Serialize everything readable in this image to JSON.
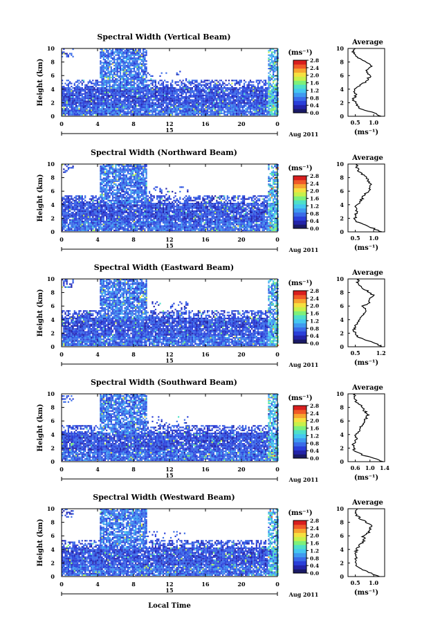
{
  "figure": {
    "xlabel": "Local Time",
    "date_label": "Aug 2011",
    "day_label": "15",
    "colorbar_unit": "(ms⁻¹)",
    "colorbar_ticks": [
      "0.0",
      "0.4",
      "0.8",
      "1.2",
      "1.6",
      "2.0",
      "2.4",
      "2.8"
    ],
    "colormap": [
      "#1a1a66",
      "#2323a8",
      "#2a3fd9",
      "#3a6be8",
      "#3f9af0",
      "#45c7f0",
      "#4fe0c8",
      "#7ef07a",
      "#c8f04a",
      "#f5e040",
      "#f7a530",
      "#f05a28",
      "#d81e1e"
    ]
  },
  "chart_data": [
    {
      "type": "heatmap",
      "title": "Spectral Width (Vertical Beam)",
      "ylabel": "Height (km)",
      "xlim": [
        0,
        24
      ],
      "ylim": [
        0,
        10
      ],
      "x_ticks": [
        "0",
        "4",
        "8",
        "12",
        "16",
        "20",
        "0"
      ],
      "y_ticks": [
        "0",
        "2",
        "4",
        "6",
        "8",
        "10"
      ],
      "colorbar_range": [
        0.0,
        2.8
      ],
      "profile": {
        "title": "Average",
        "xlabel": "(ms⁻¹)",
        "x_ticks": [
          "0.5",
          "1.0"
        ],
        "xlim": [
          0.3,
          1.3
        ],
        "y_ticks": [
          "0",
          "2",
          "4",
          "6",
          "8",
          "10"
        ],
        "heights": [
          0,
          0.5,
          1,
          1.5,
          2,
          2.5,
          3,
          3.5,
          4,
          4.5,
          5,
          5.5,
          6,
          6.5,
          7,
          7.5,
          8,
          8.5,
          9,
          9.5,
          10
        ],
        "values": [
          1.2,
          1.0,
          0.7,
          0.55,
          0.5,
          0.45,
          0.5,
          0.5,
          0.45,
          0.6,
          0.75,
          0.85,
          0.9,
          0.8,
          0.85,
          0.95,
          0.8,
          0.6,
          0.5,
          0.45,
          0.5
        ]
      }
    },
    {
      "type": "heatmap",
      "title": "Spectral Width (Northward Beam)",
      "ylabel": "Height (km)",
      "xlim": [
        0,
        24
      ],
      "ylim": [
        0,
        10
      ],
      "x_ticks": [
        "0",
        "4",
        "8",
        "12",
        "16",
        "20",
        "0"
      ],
      "y_ticks": [
        "0",
        "2",
        "4",
        "6",
        "8",
        "10"
      ],
      "colorbar_range": [
        0.0,
        2.8
      ],
      "profile": {
        "title": "Average",
        "xlabel": "(ms⁻¹)",
        "x_ticks": [
          "0.5",
          "1.0"
        ],
        "xlim": [
          0.3,
          1.3
        ],
        "y_ticks": [
          "0",
          "2",
          "4",
          "6",
          "8",
          "10"
        ],
        "heights": [
          0,
          0.5,
          1,
          1.5,
          2,
          2.5,
          3,
          3.5,
          4,
          4.5,
          5,
          5.5,
          6,
          6.5,
          7,
          7.5,
          8,
          8.5,
          9,
          9.5,
          10
        ],
        "values": [
          1.2,
          1.0,
          0.75,
          0.55,
          0.5,
          0.5,
          0.55,
          0.5,
          0.55,
          0.65,
          0.7,
          0.75,
          0.85,
          0.9,
          0.95,
          0.85,
          0.8,
          0.7,
          0.6,
          0.55,
          0.55
        ]
      }
    },
    {
      "type": "heatmap",
      "title": "Spectral Width (Eastward Beam)",
      "ylabel": "Height (km)",
      "xlim": [
        0,
        24
      ],
      "ylim": [
        0,
        10
      ],
      "x_ticks": [
        "0",
        "4",
        "8",
        "12",
        "16",
        "20",
        "0"
      ],
      "y_ticks": [
        "0",
        "2",
        "4",
        "6",
        "8",
        "10"
      ],
      "colorbar_range": [
        0.0,
        2.8
      ],
      "profile": {
        "title": "Average",
        "xlabel": "(ms⁻¹)",
        "x_ticks": [
          "0.5",
          "1.2"
        ],
        "xlim": [
          0.3,
          1.3
        ],
        "y_ticks": [
          "0",
          "2",
          "4",
          "6",
          "8",
          "10"
        ],
        "heights": [
          0,
          0.5,
          1,
          1.5,
          2,
          2.5,
          3,
          3.5,
          4,
          4.5,
          5,
          5.5,
          6,
          6.5,
          7,
          7.5,
          8,
          8.5,
          9,
          9.5,
          10
        ],
        "values": [
          1.25,
          1.05,
          0.75,
          0.55,
          0.5,
          0.45,
          0.5,
          0.55,
          0.6,
          0.7,
          0.75,
          0.8,
          0.7,
          0.9,
          0.85,
          1.0,
          0.9,
          0.75,
          0.65,
          0.55,
          0.6
        ]
      }
    },
    {
      "type": "heatmap",
      "title": "Spectral Width (Southward Beam)",
      "ylabel": "Height (km)",
      "xlim": [
        0,
        24
      ],
      "ylim": [
        0,
        10
      ],
      "x_ticks": [
        "0",
        "4",
        "8",
        "12",
        "16",
        "20",
        "0"
      ],
      "y_ticks": [
        "0",
        "2",
        "4",
        "6",
        "8",
        "10"
      ],
      "colorbar_range": [
        0.0,
        2.8
      ],
      "profile": {
        "title": "Average",
        "xlabel": "(ms⁻¹)",
        "x_ticks": [
          "0.6",
          "1.0",
          "1.4"
        ],
        "xlim": [
          0.4,
          1.4
        ],
        "y_ticks": [
          "0",
          "2",
          "4",
          "6",
          "8",
          "10"
        ],
        "heights": [
          0,
          0.5,
          1,
          1.5,
          2,
          2.5,
          3,
          3.5,
          4,
          4.5,
          5,
          5.5,
          6,
          6.5,
          7,
          7.5,
          8,
          8.5,
          9,
          9.5,
          10
        ],
        "values": [
          1.35,
          1.1,
          0.8,
          0.6,
          0.55,
          0.55,
          0.6,
          0.65,
          0.6,
          0.7,
          0.75,
          0.8,
          0.85,
          0.9,
          0.95,
          0.85,
          0.8,
          0.7,
          0.6,
          0.55,
          0.6
        ]
      }
    },
    {
      "type": "heatmap",
      "title": "Spectral Width (Westward Beam)",
      "ylabel": "Height (km)",
      "xlim": [
        0,
        24
      ],
      "ylim": [
        0,
        10
      ],
      "x_ticks": [
        "0",
        "4",
        "8",
        "12",
        "16",
        "20",
        "0"
      ],
      "y_ticks": [
        "0",
        "2",
        "4",
        "6",
        "8",
        "10"
      ],
      "colorbar_range": [
        0.0,
        2.8
      ],
      "profile": {
        "title": "Average",
        "xlabel": "(ms⁻¹)",
        "x_ticks": [
          "0.5",
          "1.0"
        ],
        "xlim": [
          0.3,
          1.3
        ],
        "y_ticks": [
          "0",
          "2",
          "4",
          "6",
          "8",
          "10"
        ],
        "heights": [
          0,
          0.5,
          1,
          1.5,
          2,
          2.5,
          3,
          3.5,
          4,
          4.5,
          5,
          5.5,
          6,
          6.5,
          7,
          7.5,
          8,
          8.5,
          9,
          9.5,
          10
        ],
        "values": [
          1.15,
          0.95,
          0.7,
          0.55,
          0.5,
          0.5,
          0.55,
          0.5,
          0.55,
          0.6,
          0.7,
          0.75,
          0.7,
          0.85,
          0.9,
          0.95,
          0.8,
          0.65,
          0.55,
          0.5,
          0.55
        ]
      }
    }
  ]
}
